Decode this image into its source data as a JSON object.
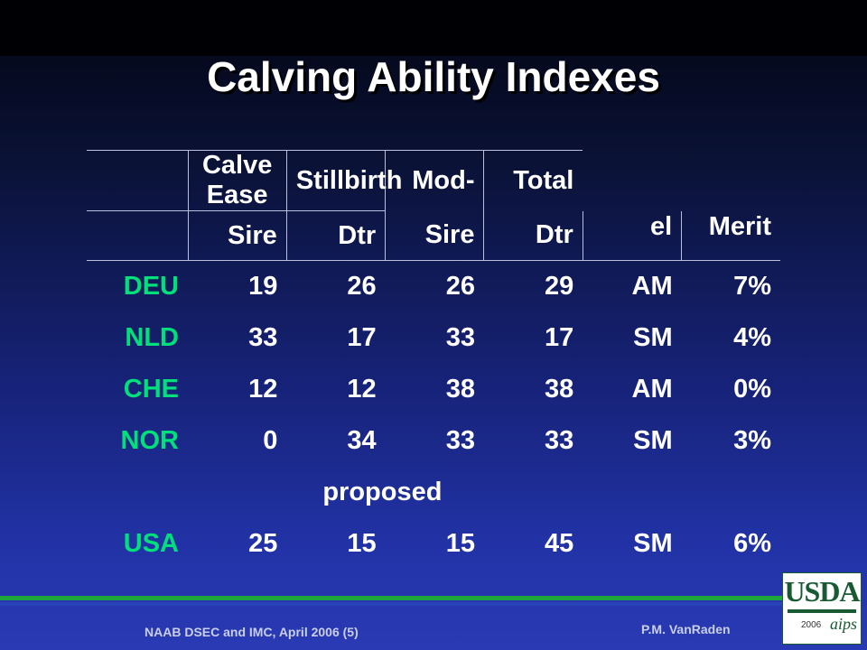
{
  "title": "Calving Ability Indexes",
  "table": {
    "header_groups": {
      "calve_ease": "Calve Ease",
      "stillbirth": "Stillbirth",
      "model_line1": "Mod-",
      "model_line2": "el",
      "total_merit_line1": "Total",
      "total_merit_line2": "Merit"
    },
    "subheaders": [
      "Sire",
      "Dtr",
      "Sire",
      "Dtr"
    ],
    "rows": [
      {
        "country": "DEU",
        "ce_sire": "19",
        "ce_dtr": "26",
        "sb_sire": "26",
        "sb_dtr": "29",
        "model": "AM",
        "merit": "7%"
      },
      {
        "country": "NLD",
        "ce_sire": "33",
        "ce_dtr": "17",
        "sb_sire": "33",
        "sb_dtr": "17",
        "model": "SM",
        "merit": "4%"
      },
      {
        "country": "CHE",
        "ce_sire": "12",
        "ce_dtr": "12",
        "sb_sire": "38",
        "sb_dtr": "38",
        "model": "AM",
        "merit": "0%"
      },
      {
        "country": "NOR",
        "ce_sire": "0",
        "ce_dtr": "34",
        "sb_sire": "33",
        "sb_dtr": "33",
        "model": "SM",
        "merit": "3%"
      }
    ],
    "proposed_label": "proposed",
    "usa_row": {
      "country": "USA",
      "ce_sire": "25",
      "ce_dtr": "15",
      "sb_sire": "15",
      "sb_dtr": "45",
      "model": "SM",
      "merit": "6%"
    }
  },
  "footer": {
    "left": "NAAB DSEC and IMC, April 2006 (5)",
    "right": "P.M. VanRaden"
  },
  "logo": {
    "text": "USDA",
    "year": "2006",
    "mark": "aips",
    "icon": "usda-logo-icon"
  },
  "colors": {
    "title": "#ffffff",
    "country_green": "#00e07a",
    "footer_green": "#1fa63b",
    "background_top": "#020512",
    "background_bottom": "#2a3ab4"
  }
}
